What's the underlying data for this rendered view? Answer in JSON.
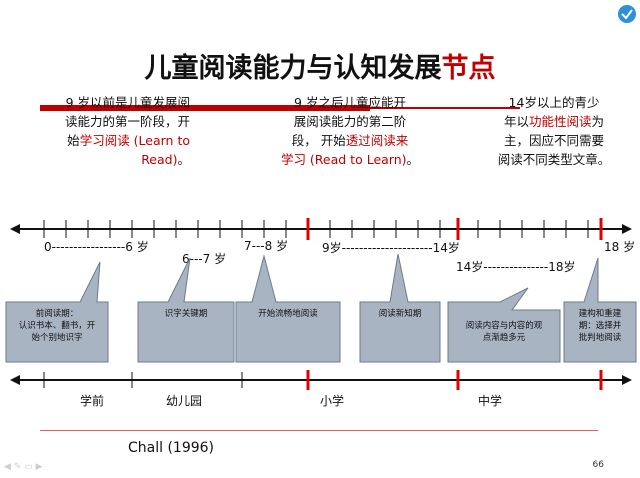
{
  "title": {
    "main": "儿童阅读能力与认知发展",
    "highlight": "节点"
  },
  "column1": {
    "line1": "9 岁以前是儿童发展阅",
    "line2": "读能力的第一阶段，开",
    "line3_prefix": "始",
    "line3_red": "学习阅读 (Learn to",
    "line4_red": "Read)",
    "line4_suffix": "。"
  },
  "column2": {
    "line1": "9 岁之后儿童应能开",
    "line2": "展阅读能力的第二阶",
    "line3_prefix": "段， 开始",
    "line3_red": "透过阅读来",
    "line4_red": "学习 (Read to Learn)",
    "line4_suffix": "。"
  },
  "column3": {
    "line1": "14岁以上的青少",
    "line2_prefix": "年以",
    "line2_red": "功能性阅读",
    "line2_suffix": "为",
    "line3": "主，因应不同需要",
    "line4": "阅读不同类型文章。"
  },
  "ranges": {
    "r1": "0-----------------6 岁",
    "r2": "6---7 岁",
    "r3": "7---8 岁",
    "r4": "9岁---------------------14岁",
    "r5": "18 岁",
    "r6": "14岁---------------18岁"
  },
  "callouts": {
    "c1": "前阅读期：\n认识书本、翻书，开\n始个别地识字",
    "c2": "识字关键期",
    "c3": "开始流畅地阅读",
    "c4": "阅读新知期",
    "c5": "阅读内容与内容的观\n点渐趋多元",
    "c6": "建构和重建\n期：选择并\n批判地阅读"
  },
  "stages": {
    "s1": "学前",
    "s2": "幼儿园",
    "s3": "小学",
    "s4": "中学"
  },
  "citation": "Chall (1996)",
  "page_number": "66",
  "colors": {
    "accent": "#c00000",
    "callout_fill": "#a9b4c2",
    "callout_stroke": "#6d7b8c"
  }
}
